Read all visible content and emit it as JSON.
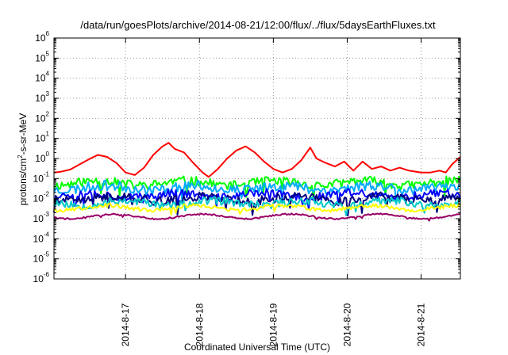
{
  "chart_data": {
    "type": "line",
    "title": "/data/run/goesPlots/archive/2014-08-21/12:00/flux/../flux/5daysEarthFluxes.txt",
    "xlabel": "Coordinated Universal Time (UTC)",
    "ylabel": "protons/cm²-s-sr-MeV",
    "y_scale": "log",
    "ylim_exponents": [
      -6,
      6
    ],
    "xlim_days": [
      "2014-08-16 00:45",
      "2014-08-21 12:45"
    ],
    "x_tick_labels": [
      "2014-8-17",
      "2014-8-18",
      "2014-8-19",
      "2014-8-20",
      "2014-8-21"
    ],
    "y_tick_exponents": [
      -6,
      -5,
      -4,
      -3,
      -2,
      -1,
      0,
      1,
      2,
      3,
      4,
      5,
      6
    ],
    "grid": true,
    "legend": "none",
    "series": [
      {
        "color": "#ff0000",
        "points": [
          [
            "2014-08-16 00:45",
            0.2
          ],
          [
            "2014-08-16 03:00",
            0.22
          ],
          [
            "2014-08-16 06:00",
            0.28
          ],
          [
            "2014-08-16 09:00",
            0.5
          ],
          [
            "2014-08-16 12:00",
            0.9
          ],
          [
            "2014-08-16 15:00",
            1.5
          ],
          [
            "2014-08-16 18:00",
            1.2
          ],
          [
            "2014-08-16 21:00",
            0.6
          ],
          [
            "2014-08-17 00:00",
            0.2
          ],
          [
            "2014-08-17 03:00",
            0.15
          ],
          [
            "2014-08-17 06:00",
            0.35
          ],
          [
            "2014-08-17 09:00",
            1.5
          ],
          [
            "2014-08-17 12:00",
            4.0
          ],
          [
            "2014-08-17 14:00",
            6.0
          ],
          [
            "2014-08-17 16:00",
            3.0
          ],
          [
            "2014-08-17 19:00",
            2.0
          ],
          [
            "2014-08-17 22:00",
            0.6
          ],
          [
            "2014-08-18 01:00",
            0.2
          ],
          [
            "2014-08-18 03:00",
            0.12
          ],
          [
            "2014-08-18 06:00",
            0.3
          ],
          [
            "2014-08-18 09:00",
            1.0
          ],
          [
            "2014-08-18 12:00",
            2.5
          ],
          [
            "2014-08-18 15:00",
            4.0
          ],
          [
            "2014-08-18 18:00",
            2.0
          ],
          [
            "2014-08-18 21:00",
            0.7
          ],
          [
            "2014-08-19 00:00",
            0.3
          ],
          [
            "2014-08-19 03:00",
            0.2
          ],
          [
            "2014-08-19 06:00",
            0.3
          ],
          [
            "2014-08-19 09:00",
            0.8
          ],
          [
            "2014-08-19 12:00",
            3.5
          ],
          [
            "2014-08-19 14:00",
            1.0
          ],
          [
            "2014-08-19 17:00",
            0.6
          ],
          [
            "2014-08-19 20:00",
            0.4
          ],
          [
            "2014-08-19 23:00",
            0.7
          ],
          [
            "2014-08-20 02:00",
            0.25
          ],
          [
            "2014-08-20 05:00",
            0.7
          ],
          [
            "2014-08-20 08:00",
            0.3
          ],
          [
            "2014-08-20 11:00",
            0.4
          ],
          [
            "2014-08-20 14:00",
            0.25
          ],
          [
            "2014-08-20 17:00",
            0.35
          ],
          [
            "2014-08-20 20:00",
            0.25
          ],
          [
            "2014-08-21 00:00",
            0.2
          ],
          [
            "2014-08-21 03:00",
            0.2
          ],
          [
            "2014-08-21 06:00",
            0.25
          ],
          [
            "2014-08-21 08:00",
            0.2
          ],
          [
            "2014-08-21 10:00",
            0.5
          ],
          [
            "2014-08-21 12:45",
            1.2
          ]
        ]
      },
      {
        "color": "#00ff00",
        "level": 0.06,
        "spread": 0.45,
        "seed": 11
      },
      {
        "color": "#00aaff",
        "level": 0.035,
        "spread": 0.5,
        "seed": 23
      },
      {
        "color": "#0000ff",
        "level": 0.015,
        "spread": 0.4,
        "seed": 37
      },
      {
        "color": "#000080",
        "level": 0.01,
        "spread": 0.45,
        "seed": 41
      },
      {
        "color": "#00c8c8",
        "level": 0.006,
        "spread": 0.4,
        "seed": 53
      },
      {
        "color": "#ffff00",
        "level": 0.0035,
        "spread": 0.2,
        "seed": 67
      },
      {
        "color": "#990066",
        "level": 0.0013,
        "spread": 0.08,
        "seed": 79
      }
    ]
  }
}
